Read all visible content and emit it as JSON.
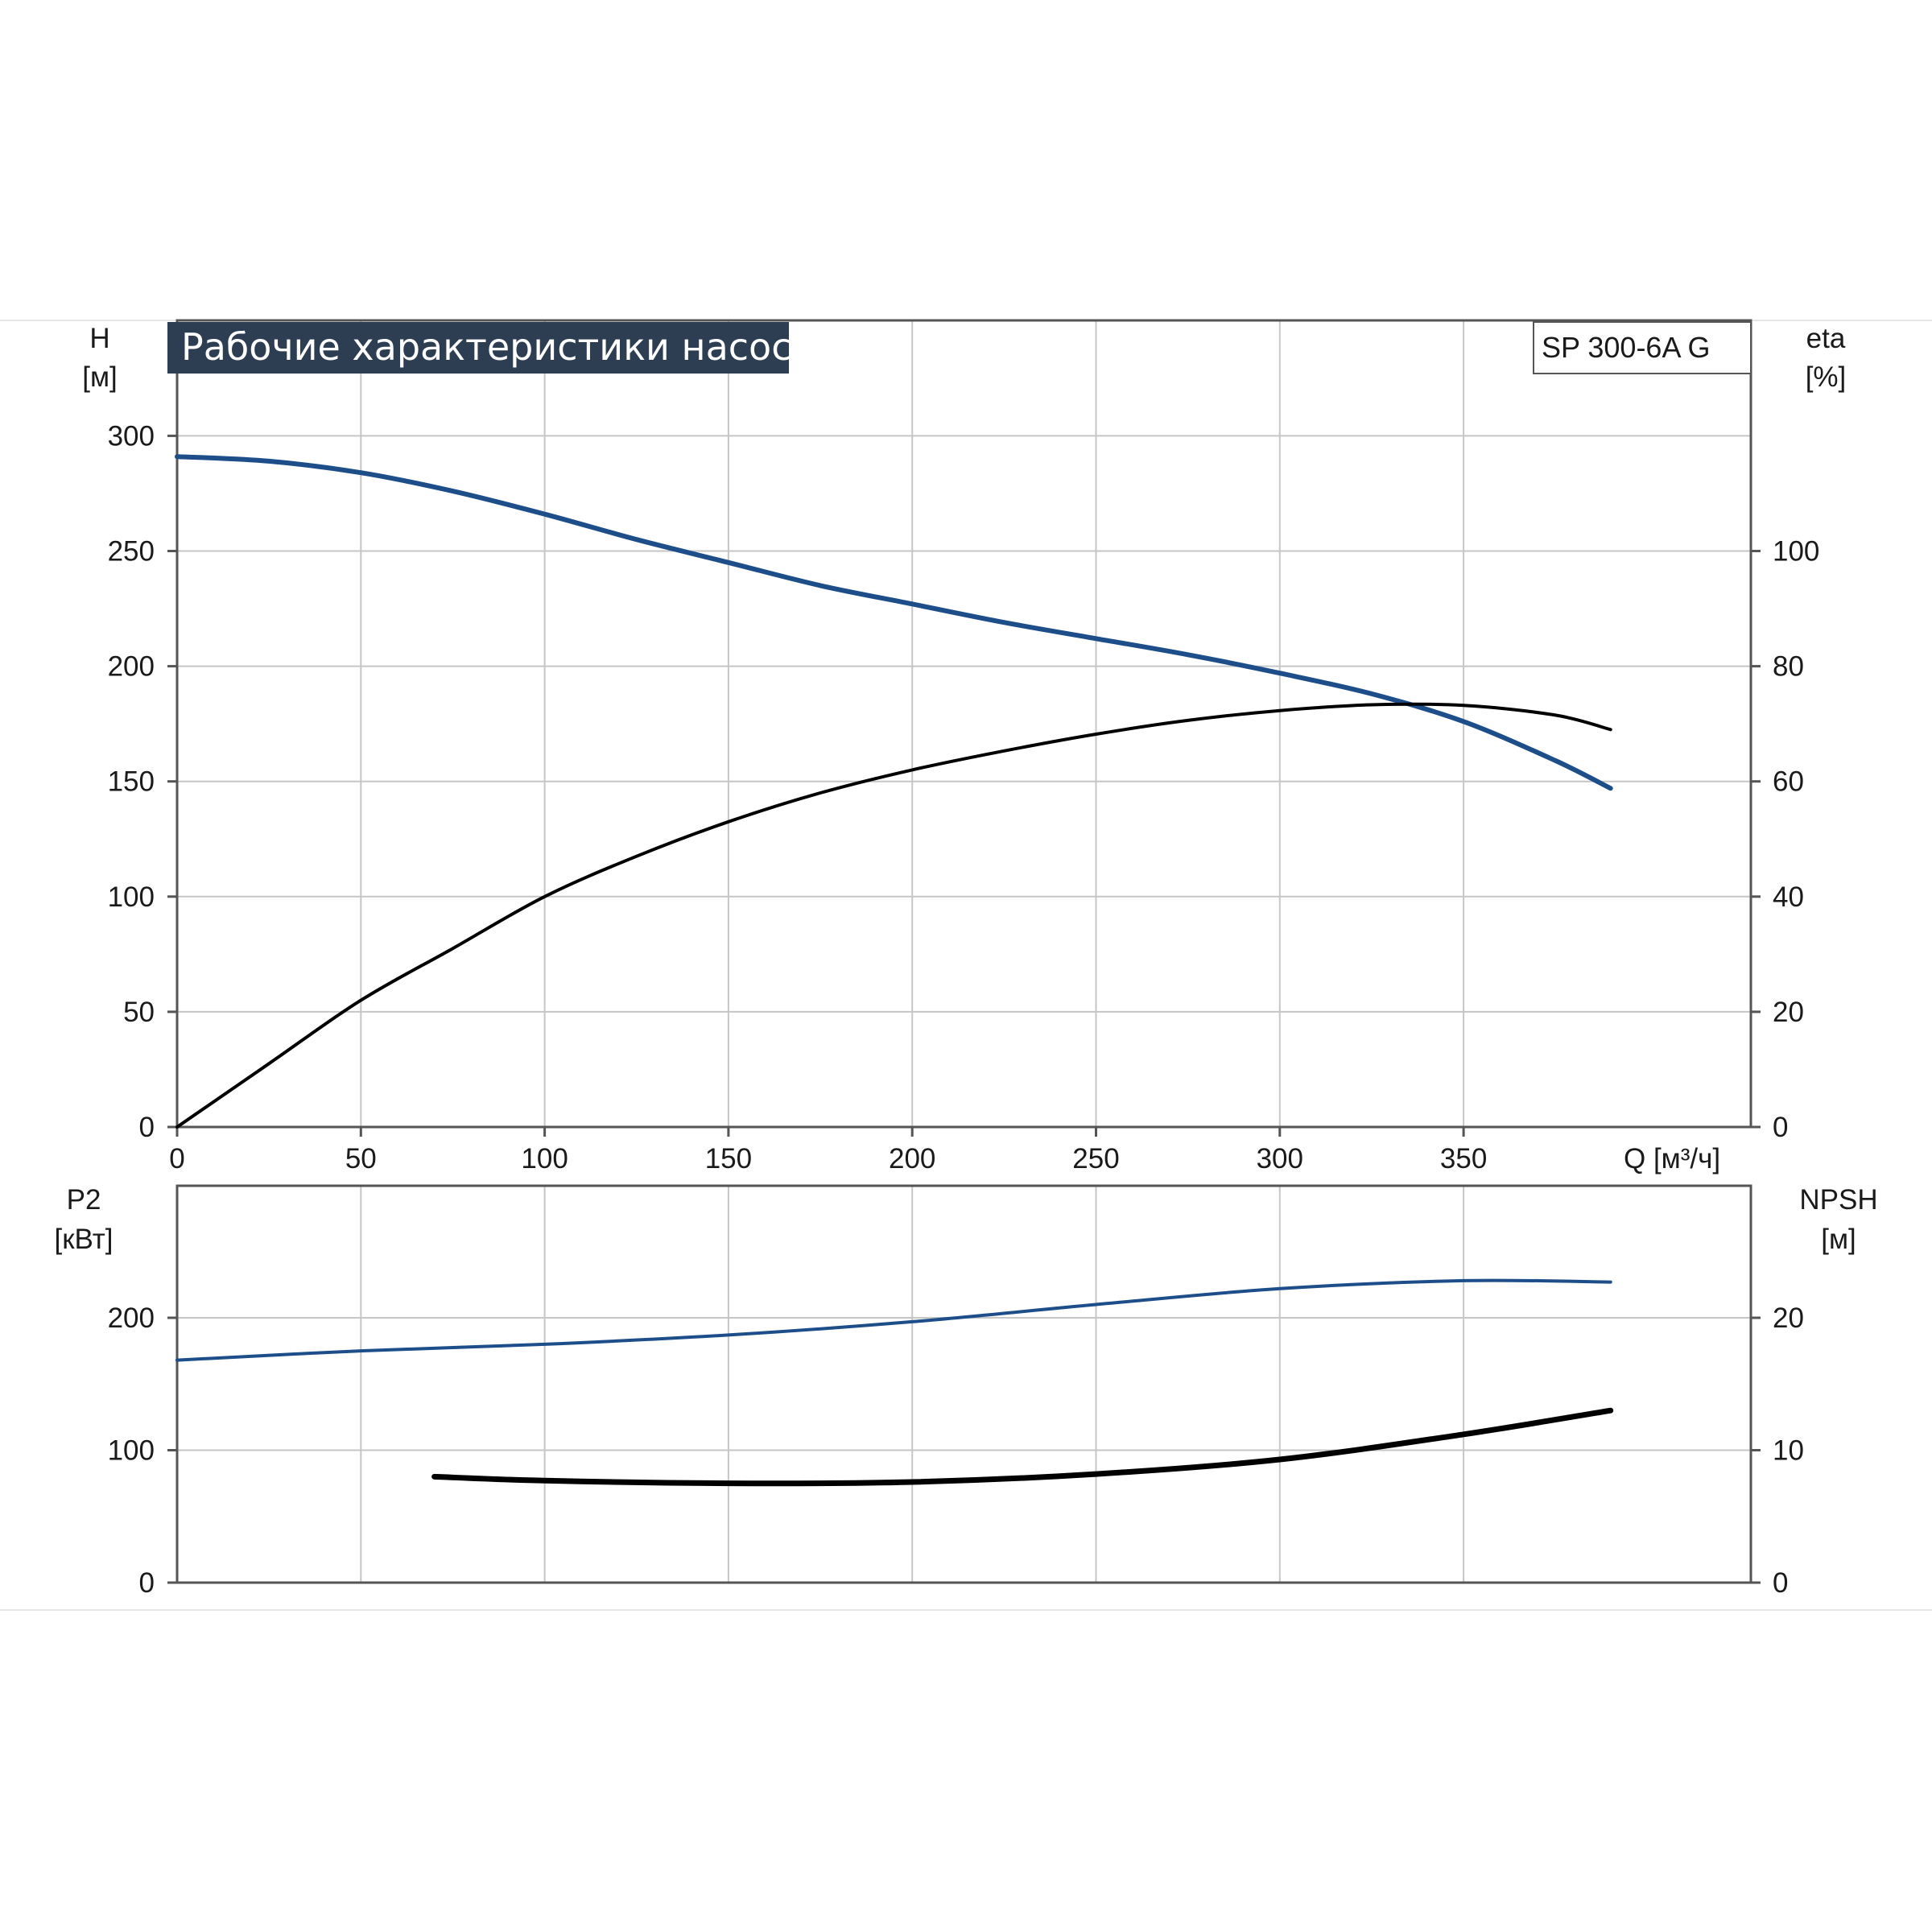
{
  "colors": {
    "head": "#1d4e89",
    "black": "#000000",
    "title_bg": "#2e3e52"
  },
  "chart_data": {
    "type": "line",
    "title": "Рабочие характеристики насоса",
    "model": "SP 300-6A G",
    "x_label": "Q [м³/ч]",
    "x_ticks": [
      "0",
      "50",
      "100",
      "150",
      "200",
      "250",
      "300",
      "350"
    ],
    "xlim": [
      0,
      428
    ],
    "top": {
      "y_left_label": [
        "H",
        "[м]"
      ],
      "y_right_label": [
        "eta",
        "[%]"
      ],
      "y_left_ticks": [
        "0",
        "50",
        "100",
        "150",
        "200",
        "250",
        "300"
      ],
      "y_right_ticks": [
        "0",
        "20",
        "40",
        "60",
        "80",
        "100"
      ],
      "ylim_left": [
        0,
        325
      ],
      "ylim_right": [
        0,
        130
      ],
      "series": [
        {
          "axis": "left",
          "color": "#1d4e89",
          "x": [
            0,
            25,
            50,
            75,
            100,
            125,
            150,
            175,
            200,
            225,
            250,
            275,
            300,
            325,
            350,
            375,
            390
          ],
          "y": [
            291,
            289,
            284,
            276,
            266,
            255,
            245,
            235,
            227,
            219,
            212,
            205,
            197,
            188,
            176,
            159,
            147
          ]
        },
        {
          "axis": "right",
          "color": "#000000",
          "x": [
            0,
            25,
            50,
            75,
            100,
            125,
            150,
            175,
            200,
            225,
            250,
            275,
            300,
            325,
            350,
            375,
            390
          ],
          "y": [
            0,
            11,
            22,
            31,
            40,
            47,
            53,
            58,
            62,
            65.3,
            68.2,
            70.6,
            72.3,
            73.3,
            73.2,
            71.5,
            69
          ]
        }
      ]
    },
    "bottom": {
      "y_left_label": [
        "P2",
        "[кВт]"
      ],
      "y_right_label": [
        "NPSH",
        "[м]"
      ],
      "y_left_ticks": [
        "0",
        "100",
        "200"
      ],
      "y_right_ticks": [
        "0",
        "10",
        "20"
      ],
      "ylim_left": [
        0,
        300
      ],
      "ylim_right": [
        0,
        30
      ],
      "series": [
        {
          "axis": "left",
          "color": "#1d4e89",
          "x": [
            0,
            50,
            100,
            150,
            200,
            250,
            300,
            350,
            390
          ],
          "y": [
            168,
            175,
            180,
            187,
            197,
            210,
            222,
            228,
            227
          ]
        },
        {
          "axis": "right",
          "color": "#000000",
          "x": [
            70,
            100,
            150,
            200,
            250,
            300,
            350,
            390
          ],
          "y": [
            8.0,
            7.7,
            7.5,
            7.6,
            8.2,
            9.3,
            11.2,
            13.0
          ]
        }
      ]
    }
  }
}
